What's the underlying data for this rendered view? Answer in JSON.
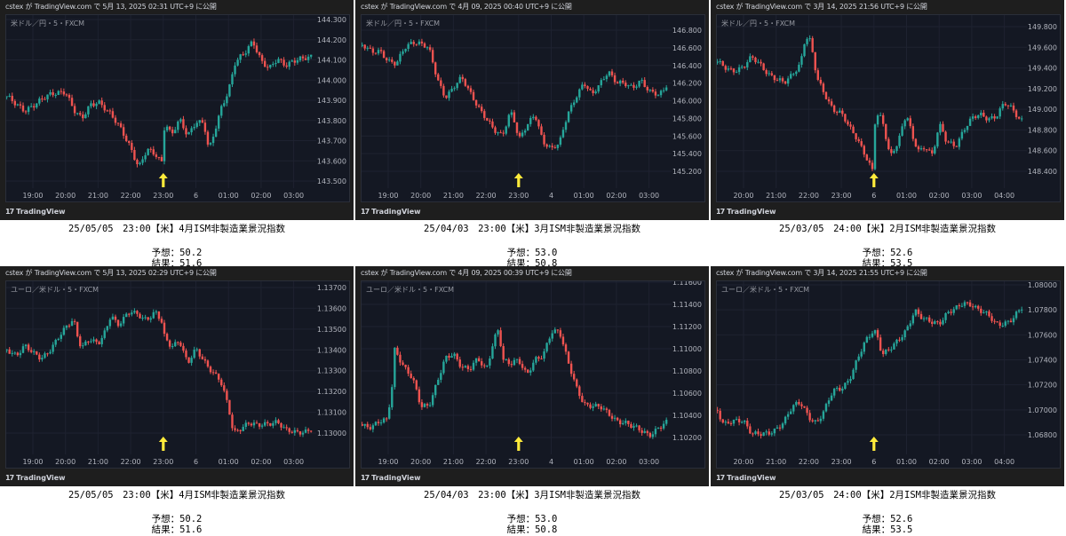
{
  "colors": {
    "up": "#26a69a",
    "down": "#ef5350",
    "arrow": "#ffeb3b",
    "grid": "#1e2230"
  },
  "brand": "TradingView",
  "charts": [
    {
      "header": "cstex が TradingView.com で 5月 13, 2025 02:31 UTC+9 に公開",
      "symbol": "米ドル／円・5・FXCM",
      "caption": {
        "title": "25/05/05　23:00【米】4月ISM非製造業景況指数",
        "forecast": "予想：50.2",
        "result": "結果：51.6"
      },
      "chart_data": {
        "type": "candlestick",
        "price_ticks": [
          "144.300",
          "144.200",
          "144.100",
          "144.000",
          "143.900",
          "143.800",
          "143.700",
          "143.600",
          "143.500"
        ],
        "time_labels": [
          "19:00",
          "20:00",
          "21:00",
          "22:00",
          "23:00",
          "6",
          "01:00",
          "02:00",
          "03:00"
        ],
        "event_marker_time": "23:00",
        "price_path_hours_from_first_label": [
          [
            -0.8,
            143.92
          ],
          [
            -0.5,
            143.87
          ],
          [
            -0.25,
            143.85
          ],
          [
            0,
            143.88
          ],
          [
            0.25,
            143.9
          ],
          [
            0.5,
            143.92
          ],
          [
            0.75,
            143.94
          ],
          [
            1,
            143.95
          ],
          [
            1.25,
            143.85
          ],
          [
            1.5,
            143.8
          ],
          [
            1.75,
            143.88
          ],
          [
            2,
            143.9
          ],
          [
            2.25,
            143.85
          ],
          [
            2.5,
            143.8
          ],
          [
            2.75,
            143.75
          ],
          [
            3,
            143.67
          ],
          [
            3.25,
            143.56
          ],
          [
            3.5,
            143.65
          ],
          [
            3.75,
            143.64
          ],
          [
            3.95,
            143.6
          ],
          [
            4.05,
            143.8
          ],
          [
            4.25,
            143.72
          ],
          [
            4.5,
            143.8
          ],
          [
            4.75,
            143.73
          ],
          [
            5,
            143.8
          ],
          [
            5.25,
            143.78
          ],
          [
            5.4,
            143.64
          ],
          [
            5.6,
            143.76
          ],
          [
            5.8,
            143.88
          ],
          [
            6,
            143.95
          ],
          [
            6.2,
            144.08
          ],
          [
            6.5,
            144.13
          ],
          [
            6.75,
            144.2
          ],
          [
            7,
            144.1
          ],
          [
            7.25,
            144.05
          ],
          [
            7.5,
            144.1
          ],
          [
            7.75,
            144.08
          ],
          [
            8,
            144.1
          ],
          [
            8.3,
            144.1
          ],
          [
            8.7,
            144.12
          ]
        ]
      }
    },
    {
      "header": "cstex が TradingView.com で 4月 09, 2025 00:40 UTC+9 に公開",
      "symbol": "米ドル／円・5・FXCM",
      "caption": {
        "title": "25/04/03　23:00【米】3月ISM非製造業景況指数",
        "forecast": "予想：53.0",
        "result": "結果：50.8"
      },
      "chart_data": {
        "type": "candlestick",
        "price_ticks": [
          "146.800",
          "146.600",
          "146.400",
          "146.200",
          "146.000",
          "145.800",
          "145.600",
          "145.400",
          "145.200"
        ],
        "time_labels": [
          "19:00",
          "20:00",
          "21:00",
          "22:00",
          "23:00",
          "4",
          "01:00",
          "02:00",
          "03:00"
        ],
        "event_marker_time": "23:00",
        "price_path_hours_from_first_label": [
          [
            -0.8,
            146.62
          ],
          [
            -0.5,
            146.55
          ],
          [
            -0.25,
            146.58
          ],
          [
            0,
            146.45
          ],
          [
            0.25,
            146.4
          ],
          [
            0.5,
            146.6
          ],
          [
            0.75,
            146.68
          ],
          [
            1,
            146.65
          ],
          [
            1.25,
            146.58
          ],
          [
            1.5,
            146.25
          ],
          [
            1.75,
            146.05
          ],
          [
            2,
            146.15
          ],
          [
            2.25,
            146.25
          ],
          [
            2.5,
            146.1
          ],
          [
            2.75,
            145.95
          ],
          [
            3,
            145.8
          ],
          [
            3.25,
            145.65
          ],
          [
            3.5,
            145.6
          ],
          [
            3.75,
            145.9
          ],
          [
            3.9,
            145.75
          ],
          [
            4,
            145.55
          ],
          [
            4.25,
            145.7
          ],
          [
            4.5,
            145.85
          ],
          [
            4.75,
            145.55
          ],
          [
            5,
            145.45
          ],
          [
            5.25,
            145.5
          ],
          [
            5.5,
            145.85
          ],
          [
            5.75,
            146.05
          ],
          [
            6,
            146.2
          ],
          [
            6.25,
            146.05
          ],
          [
            6.5,
            146.2
          ],
          [
            6.75,
            146.35
          ],
          [
            7,
            146.2
          ],
          [
            7.25,
            146.18
          ],
          [
            7.5,
            146.15
          ],
          [
            7.75,
            146.25
          ],
          [
            8,
            146.1
          ],
          [
            8.3,
            146.05
          ],
          [
            8.5,
            146.15
          ],
          [
            8.7,
            146.35
          ]
        ]
      }
    },
    {
      "header": "cstex が TradingView.com で 3月 14, 2025 21:56 UTC+9 に公開",
      "symbol": "米ドル／円・5・FXCM",
      "caption": {
        "title": "25/03/05　24:00【米】2月ISM非製造業景況指数",
        "forecast": "予想：52.6",
        "result": "結果：53.5"
      },
      "chart_data": {
        "type": "candlestick",
        "price_ticks": [
          "149.800",
          "149.600",
          "149.400",
          "149.200",
          "149.000",
          "148.800",
          "148.600",
          "148.400"
        ],
        "time_labels": [
          "20:00",
          "21:00",
          "22:00",
          "23:00",
          "6",
          "01:00",
          "02:00",
          "03:00",
          "04:00"
        ],
        "event_marker_time": "6",
        "price_path_hours_from_first_label": [
          [
            -0.8,
            149.45
          ],
          [
            -0.5,
            149.4
          ],
          [
            -0.25,
            149.38
          ],
          [
            0,
            149.4
          ],
          [
            0.25,
            149.5
          ],
          [
            0.5,
            149.45
          ],
          [
            0.75,
            149.35
          ],
          [
            1,
            149.28
          ],
          [
            1.25,
            149.25
          ],
          [
            1.5,
            149.35
          ],
          [
            1.75,
            149.45
          ],
          [
            1.9,
            149.7
          ],
          [
            2.05,
            149.65
          ],
          [
            2.25,
            149.3
          ],
          [
            2.5,
            149.15
          ],
          [
            2.75,
            149.0
          ],
          [
            3,
            148.95
          ],
          [
            3.25,
            148.82
          ],
          [
            3.5,
            148.72
          ],
          [
            3.75,
            148.55
          ],
          [
            3.95,
            148.4
          ],
          [
            4.05,
            148.95
          ],
          [
            4.25,
            148.9
          ],
          [
            4.5,
            148.55
          ],
          [
            4.75,
            148.7
          ],
          [
            5,
            148.95
          ],
          [
            5.2,
            148.7
          ],
          [
            5.4,
            148.6
          ],
          [
            5.6,
            148.65
          ],
          [
            5.8,
            148.55
          ],
          [
            6,
            148.85
          ],
          [
            6.2,
            148.7
          ],
          [
            6.5,
            148.65
          ],
          [
            6.75,
            148.8
          ],
          [
            7,
            148.9
          ],
          [
            7.25,
            148.95
          ],
          [
            7.5,
            148.92
          ],
          [
            7.75,
            148.93
          ],
          [
            8,
            149.05
          ],
          [
            8.25,
            149.0
          ],
          [
            8.5,
            148.9
          ],
          [
            8.7,
            148.93
          ]
        ]
      }
    },
    {
      "header": "cstex が TradingView.com で 5月 13, 2025 02:29 UTC+9 に公開",
      "symbol": "ユーロ／米ドル・5・FXCM",
      "caption": {
        "title": "25/05/05　23:00【米】4月ISM非製造業景況指数",
        "forecast": "予想：50.2",
        "result": "結果：51.6"
      },
      "chart_data": {
        "type": "candlestick",
        "price_ticks": [
          "1.13700",
          "1.13600",
          "1.13500",
          "1.13400",
          "1.13300",
          "1.13200",
          "1.13100",
          "1.13000"
        ],
        "time_labels": [
          "19:00",
          "20:00",
          "21:00",
          "22:00",
          "23:00",
          "6",
          "01:00",
          "02:00",
          "03:00"
        ],
        "event_marker_time": "23:00",
        "price_path_hours_from_first_label": [
          [
            -0.8,
            1.134
          ],
          [
            -0.5,
            1.1338
          ],
          [
            -0.25,
            1.1342
          ],
          [
            0,
            1.1338
          ],
          [
            0.25,
            1.1336
          ],
          [
            0.5,
            1.134
          ],
          [
            0.75,
            1.1345
          ],
          [
            1,
            1.135
          ],
          [
            1.25,
            1.1355
          ],
          [
            1.4,
            1.1345
          ],
          [
            1.5,
            1.1342
          ],
          [
            1.75,
            1.1345
          ],
          [
            2,
            1.1342
          ],
          [
            2.25,
            1.135
          ],
          [
            2.4,
            1.1358
          ],
          [
            2.6,
            1.1352
          ],
          [
            2.8,
            1.1355
          ],
          [
            3,
            1.1358
          ],
          [
            3.25,
            1.1357
          ],
          [
            3.5,
            1.1355
          ],
          [
            3.75,
            1.1358
          ],
          [
            3.95,
            1.1353
          ],
          [
            4.05,
            1.1345
          ],
          [
            4.25,
            1.1342
          ],
          [
            4.5,
            1.1345
          ],
          [
            4.75,
            1.1333
          ],
          [
            5,
            1.134
          ],
          [
            5.25,
            1.1335
          ],
          [
            5.5,
            1.133
          ],
          [
            5.75,
            1.1325
          ],
          [
            6,
            1.1312
          ],
          [
            6.15,
            1.13
          ],
          [
            6.3,
            1.1302
          ],
          [
            6.6,
            1.1305
          ],
          [
            6.9,
            1.1303
          ],
          [
            7.25,
            1.1305
          ],
          [
            7.5,
            1.1306
          ],
          [
            7.75,
            1.1301
          ],
          [
            8,
            1.13
          ],
          [
            8.3,
            1.1301
          ],
          [
            8.7,
            1.1303
          ]
        ]
      }
    },
    {
      "header": "cstex が TradingView.com で 4月 09, 2025 00:39 UTC+9 に公開",
      "symbol": "ユーロ／米ドル・5・FXCM",
      "caption": {
        "title": "25/04/03　23:00【米】3月ISM非製造業景況指数",
        "forecast": "予想：53.0",
        "result": "結果：50.8"
      },
      "chart_data": {
        "type": "candlestick",
        "price_ticks": [
          "1.11600",
          "1.11400",
          "1.11200",
          "1.11000",
          "1.10800",
          "1.10600",
          "1.10400",
          "1.10200"
        ],
        "time_labels": [
          "19:00",
          "20:00",
          "21:00",
          "22:00",
          "23:00",
          "4",
          "01:00",
          "02:00",
          "03:00"
        ],
        "event_marker_time": "23:00",
        "price_path_hours_from_first_label": [
          [
            -0.8,
            1.1032
          ],
          [
            -0.5,
            1.103
          ],
          [
            -0.3,
            1.1033
          ],
          [
            -0.05,
            1.1035
          ],
          [
            0.1,
            1.106
          ],
          [
            0.2,
            1.11
          ],
          [
            0.3,
            1.1095
          ],
          [
            0.5,
            1.1083
          ],
          [
            0.75,
            1.1072
          ],
          [
            1,
            1.1048
          ],
          [
            1.25,
            1.105
          ],
          [
            1.5,
            1.107
          ],
          [
            1.75,
            1.109
          ],
          [
            2,
            1.1095
          ],
          [
            2.25,
            1.1085
          ],
          [
            2.5,
            1.1082
          ],
          [
            2.75,
            1.109
          ],
          [
            3,
            1.108
          ],
          [
            3.25,
            1.111
          ],
          [
            3.4,
            1.112
          ],
          [
            3.5,
            1.109
          ],
          [
            3.75,
            1.1085
          ],
          [
            4,
            1.109
          ],
          [
            4.25,
            1.1078
          ],
          [
            4.5,
            1.109
          ],
          [
            4.75,
            1.1092
          ],
          [
            5,
            1.1115
          ],
          [
            5.25,
            1.1118
          ],
          [
            5.5,
            1.109
          ],
          [
            5.75,
            1.1065
          ],
          [
            6,
            1.105
          ],
          [
            6.25,
            1.105
          ],
          [
            6.5,
            1.1048
          ],
          [
            6.75,
            1.104
          ],
          [
            7,
            1.1035
          ],
          [
            7.25,
            1.1035
          ],
          [
            7.5,
            1.103
          ],
          [
            7.75,
            1.1025
          ],
          [
            8,
            1.1022
          ],
          [
            8.3,
            1.103
          ],
          [
            8.5,
            1.1033
          ],
          [
            8.7,
            1.1034
          ]
        ]
      }
    },
    {
      "header": "cstex が TradingView.com で 3月 14, 2025 21:55 UTC+9 に公開",
      "symbol": "ユーロ／米ドル・5・FXCM",
      "caption": {
        "title": "25/03/05　24:00【米】2月ISM非製造業景況指数",
        "forecast": "予想：52.6",
        "result": "結果：53.5"
      },
      "chart_data": {
        "type": "candlestick",
        "price_ticks": [
          "1.08000",
          "1.07800",
          "1.07600",
          "1.07400",
          "1.07200",
          "1.07000",
          "1.06800"
        ],
        "time_labels": [
          "20:00",
          "21:00",
          "22:00",
          "23:00",
          "6",
          "01:00",
          "02:00",
          "03:00",
          "04:00"
        ],
        "event_marker_time": "6",
        "price_path_hours_from_first_label": [
          [
            -0.8,
            1.07
          ],
          [
            -0.6,
            1.0688
          ],
          [
            -0.3,
            1.069
          ],
          [
            0,
            1.0692
          ],
          [
            0.25,
            1.0682
          ],
          [
            0.5,
            1.068
          ],
          [
            0.75,
            1.068
          ],
          [
            1,
            1.0685
          ],
          [
            1.25,
            1.0692
          ],
          [
            1.5,
            1.0702
          ],
          [
            1.75,
            1.0705
          ],
          [
            2,
            1.0695
          ],
          [
            2.25,
            1.069
          ],
          [
            2.5,
            1.07
          ],
          [
            2.75,
            1.0715
          ],
          [
            3,
            1.0718
          ],
          [
            3.25,
            1.0725
          ],
          [
            3.5,
            1.074
          ],
          [
            3.75,
            1.0755
          ],
          [
            4,
            1.0765
          ],
          [
            4.1,
            1.076
          ],
          [
            4.25,
            1.0745
          ],
          [
            4.5,
            1.0748
          ],
          [
            4.75,
            1.0755
          ],
          [
            5,
            1.0765
          ],
          [
            5.25,
            1.078
          ],
          [
            5.5,
            1.0772
          ],
          [
            5.75,
            1.077
          ],
          [
            6,
            1.077
          ],
          [
            6.25,
            1.0778
          ],
          [
            6.5,
            1.078
          ],
          [
            6.75,
            1.0785
          ],
          [
            7,
            1.0785
          ],
          [
            7.25,
            1.078
          ],
          [
            7.5,
            1.0775
          ],
          [
            7.75,
            1.0768
          ],
          [
            8,
            1.077
          ],
          [
            8.25,
            1.0773
          ],
          [
            8.5,
            1.078
          ],
          [
            8.7,
            1.0785
          ]
        ]
      }
    }
  ]
}
